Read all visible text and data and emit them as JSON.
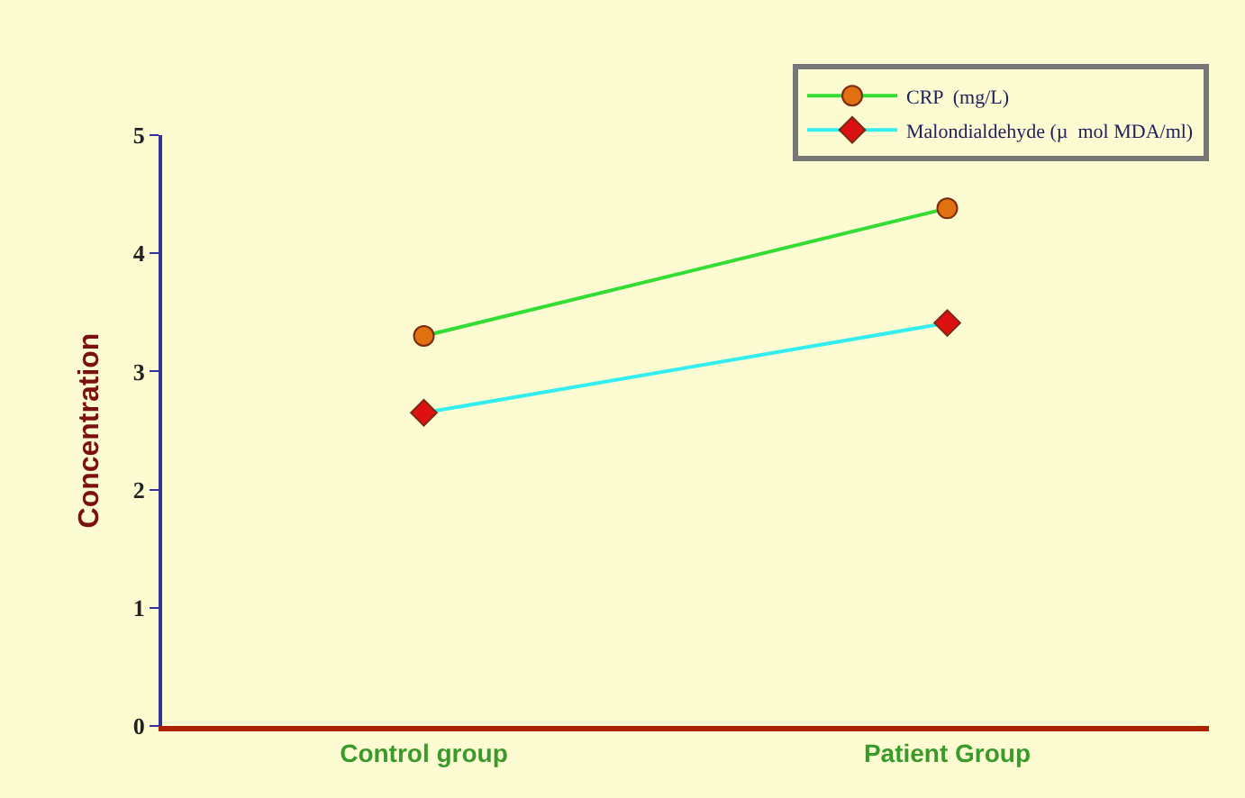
{
  "chart_data": {
    "type": "line",
    "ylabel": "Concentration",
    "categories": [
      "Control group",
      "Patient Group"
    ],
    "series": [
      {
        "name": "CRP  (mg/L)",
        "color": "#33dd33",
        "colors": [
          "#e07010",
          "#e07010"
        ],
        "marker": "circle",
        "values": [
          3.3,
          4.38
        ]
      },
      {
        "name": "Malondialdehyde (µ  mol MDA/ml)",
        "color": "#33eeee",
        "colors": [
          "#dd1111",
          "#dd1111"
        ],
        "marker": "diamond",
        "values": [
          2.65,
          3.41
        ]
      }
    ],
    "ylim": [
      0,
      5
    ],
    "yticks": [
      0,
      1,
      2,
      3,
      4,
      5
    ],
    "grid": false,
    "legend": "top right"
  }
}
